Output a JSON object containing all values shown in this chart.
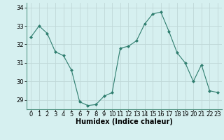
{
  "x": [
    0,
    1,
    2,
    3,
    4,
    5,
    6,
    7,
    8,
    9,
    10,
    11,
    12,
    13,
    14,
    15,
    16,
    17,
    18,
    19,
    20,
    21,
    22,
    23
  ],
  "y": [
    32.4,
    33.0,
    32.6,
    31.6,
    31.4,
    30.6,
    28.9,
    28.7,
    28.75,
    29.2,
    29.4,
    31.8,
    31.9,
    32.2,
    33.1,
    33.65,
    33.75,
    32.7,
    31.55,
    31.0,
    30.0,
    30.9,
    29.5,
    29.4
  ],
  "line_color": "#2e7d6e",
  "marker": "D",
  "marker_size": 2.0,
  "background_color": "#d6f0f0",
  "grid_color": "#c0d8d8",
  "xlabel": "Humidex (Indice chaleur)",
  "ylim": [
    28.5,
    34.25
  ],
  "xlim": [
    -0.5,
    23.5
  ],
  "yticks": [
    29,
    30,
    31,
    32,
    33,
    34
  ],
  "xticks": [
    0,
    1,
    2,
    3,
    4,
    5,
    6,
    7,
    8,
    9,
    10,
    11,
    12,
    13,
    14,
    15,
    16,
    17,
    18,
    19,
    20,
    21,
    22,
    23
  ],
  "label_fontsize": 7,
  "tick_fontsize": 6
}
